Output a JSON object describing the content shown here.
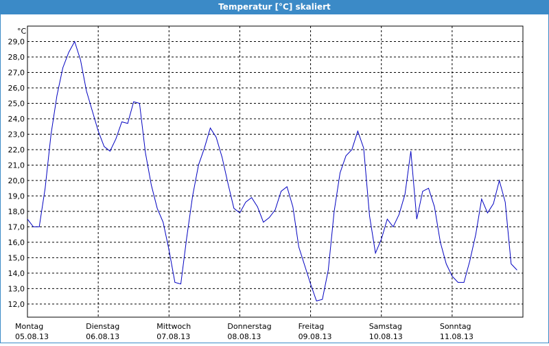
{
  "window_title": "Temperatur [°C] skaliert",
  "chart_data": {
    "type": "line",
    "y_label": "°C",
    "x": [
      0,
      2,
      4,
      6,
      8,
      10,
      12,
      14,
      16,
      18,
      20,
      22,
      24,
      26,
      28,
      30,
      32,
      34,
      36,
      38,
      40,
      42,
      44,
      46,
      48,
      50,
      52,
      54,
      56,
      58,
      60,
      62,
      64,
      66,
      68,
      70,
      72,
      74,
      76,
      78,
      80,
      82,
      84,
      86,
      88,
      90,
      92,
      94,
      96,
      98,
      100,
      102,
      104,
      106,
      108,
      110,
      112,
      114,
      116,
      118,
      120,
      122,
      124,
      126,
      128,
      130,
      132,
      134,
      136,
      138,
      140,
      142,
      144,
      146,
      148,
      150,
      152,
      154,
      156,
      158,
      160,
      162,
      164,
      166
    ],
    "series": [
      {
        "name": "Temperatur",
        "color": "#0000c0",
        "values": [
          17.5,
          17.0,
          17.0,
          19.5,
          23.0,
          25.5,
          27.3,
          28.3,
          29.0,
          27.8,
          25.8,
          24.5,
          23.2,
          22.2,
          21.9,
          22.7,
          23.8,
          23.7,
          25.1,
          25.0,
          21.8,
          19.7,
          18.2,
          17.3,
          15.5,
          13.4,
          13.3,
          16.3,
          19.0,
          21.0,
          22.1,
          23.4,
          22.8,
          21.5,
          19.8,
          18.2,
          17.9,
          18.6,
          18.9,
          18.3,
          17.3,
          17.6,
          18.1,
          19.3,
          19.6,
          18.3,
          15.7,
          14.5,
          13.3,
          12.2,
          12.3,
          14.2,
          18.0,
          20.5,
          21.6,
          22.0,
          23.2,
          22.1,
          17.7,
          15.3,
          16.2,
          17.5,
          17.0,
          17.8,
          19.1,
          21.9,
          17.5,
          19.3,
          19.5,
          18.3,
          16.0,
          14.6,
          13.8,
          13.4,
          13.4,
          14.8,
          16.5,
          18.8,
          17.9,
          18.5,
          20.0,
          18.6,
          14.6,
          14.2
        ]
      }
    ],
    "xlim": [
      0,
      168
    ],
    "xticks": [
      {
        "value": 0,
        "label": "Montag",
        "date": "05.08.13"
      },
      {
        "value": 24,
        "label": "Dienstag",
        "date": "06.08.13"
      },
      {
        "value": 48,
        "label": "Mittwoch",
        "date": "07.08.13"
      },
      {
        "value": 72,
        "label": "Donnerstag",
        "date": "08.08.13"
      },
      {
        "value": 96,
        "label": "Freitag",
        "date": "09.08.13"
      },
      {
        "value": 120,
        "label": "Samstag",
        "date": "10.08.13"
      },
      {
        "value": 144,
        "label": "Sonntag",
        "date": "11.08.13"
      }
    ],
    "ylim": [
      11.15,
      30
    ],
    "yticks": [
      {
        "value": 12,
        "label": "12,0"
      },
      {
        "value": 13,
        "label": "13,0"
      },
      {
        "value": 14,
        "label": "14,0"
      },
      {
        "value": 15,
        "label": "15,0"
      },
      {
        "value": 16,
        "label": "16,0"
      },
      {
        "value": 17,
        "label": "17,0"
      },
      {
        "value": 18,
        "label": "18,0"
      },
      {
        "value": 19,
        "label": "19,0"
      },
      {
        "value": 20,
        "label": "20,0"
      },
      {
        "value": 21,
        "label": "21,0"
      },
      {
        "value": 22,
        "label": "22,0"
      },
      {
        "value": 23,
        "label": "23,0"
      },
      {
        "value": 24,
        "label": "24,0"
      },
      {
        "value": 25,
        "label": "25,0"
      },
      {
        "value": 26,
        "label": "26,0"
      },
      {
        "value": 27,
        "label": "27,0"
      },
      {
        "value": 28,
        "label": "28,0"
      },
      {
        "value": 29,
        "label": "29,0"
      }
    ],
    "grid": true
  }
}
